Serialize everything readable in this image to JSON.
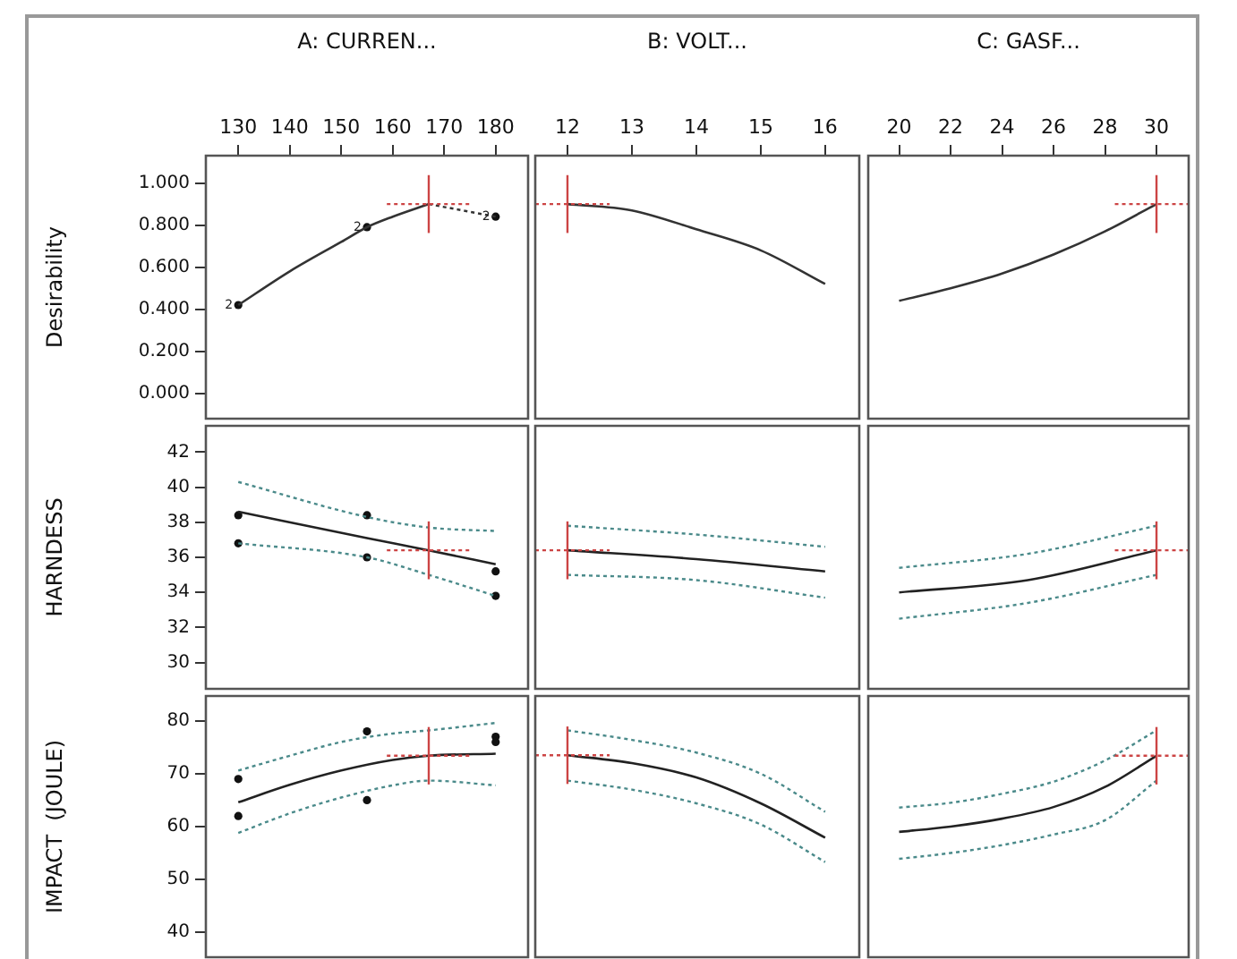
{
  "chart_data": [
    {
      "type": "line",
      "title": "A: CURREN...",
      "ylabel": "Desirability",
      "xlim": [
        123.7,
        186.3
      ],
      "xticks": [
        130,
        140,
        150,
        160,
        170,
        180
      ],
      "ylim": [
        -0.12,
        1.13
      ],
      "yticks": [
        {
          "value": 0,
          "label": "0.000"
        },
        {
          "value": 0.2,
          "label": "0.200"
        },
        {
          "value": 0.4,
          "label": "0.400"
        },
        {
          "value": 0.6,
          "label": "0.600"
        },
        {
          "value": 0.8,
          "label": "0.800"
        },
        {
          "value": 1,
          "label": "1.000"
        }
      ],
      "series": [
        {
          "type": "line",
          "color": "#333333",
          "x": [
            130,
            140,
            150,
            155,
            160,
            167
          ],
          "values": [
            0.42,
            0.58,
            0.72,
            0.79,
            0.84,
            0.9
          ]
        },
        {
          "type": "line",
          "color": "#333333",
          "line_style": "dotted",
          "x": [
            167,
            180
          ],
          "values": [
            0.9,
            0.84
          ]
        },
        {
          "type": "scatter",
          "color": "#111111",
          "marker": "circle",
          "x": [
            130,
            155,
            180
          ],
          "values": [
            0.42,
            0.79,
            0.84
          ]
        }
      ],
      "ref_lines": [
        {
          "axis": "x",
          "value": 167,
          "color": "#cc4444"
        },
        {
          "axis": "y",
          "value": 0.9,
          "color": "#cc4444",
          "line_style": "dotted"
        }
      ],
      "annotations": [
        {
          "text": "2",
          "x": 130,
          "y": 0.42
        },
        {
          "text": "2",
          "x": 155,
          "y": 0.79
        },
        {
          "text": "2",
          "x": 180,
          "y": 0.84
        }
      ]
    },
    {
      "type": "line",
      "title": "B: VOLT...",
      "tick_labels": "x",
      "xlim": [
        11.5,
        16.53
      ],
      "xticks": [
        12,
        13,
        14,
        15,
        16
      ],
      "ylim": [
        -0.12,
        1.13
      ],
      "series": [
        {
          "type": "line",
          "color": "#333333",
          "x": [
            12,
            13,
            14,
            15,
            16
          ],
          "values": [
            0.9,
            0.87,
            0.78,
            0.68,
            0.52
          ]
        }
      ],
      "ref_lines": [
        {
          "axis": "x",
          "value": 12,
          "color": "#cc4444"
        },
        {
          "axis": "y",
          "value": 0.9,
          "color": "#cc4444",
          "line_style": "dotted"
        }
      ]
    },
    {
      "type": "line",
      "title": "C: GASF...",
      "tick_labels": "x",
      "xlim": [
        18.8,
        31.25
      ],
      "xticks": [
        20,
        22,
        24,
        26,
        28,
        30
      ],
      "ylim": [
        -0.12,
        1.13
      ],
      "series": [
        {
          "type": "line",
          "color": "#333333",
          "x": [
            20,
            22,
            24,
            26,
            28,
            30
          ],
          "values": [
            0.44,
            0.5,
            0.57,
            0.66,
            0.77,
            0.9
          ]
        }
      ],
      "ref_lines": [
        {
          "axis": "x",
          "value": 30,
          "color": "#cc4444"
        },
        {
          "axis": "y",
          "value": 0.9,
          "color": "#cc4444",
          "line_style": "dotted"
        }
      ]
    },
    {
      "type": "line",
      "ylabel": "HARNDESS",
      "tick_labels": "y",
      "xlim": [
        123.7,
        186.3
      ],
      "ylim": [
        28.5,
        43.5
      ],
      "yticks": [
        30,
        32,
        34,
        36,
        38,
        40,
        42
      ],
      "series": [
        {
          "type": "line",
          "color": "#222222",
          "x": [
            130,
            155,
            167,
            180
          ],
          "values": [
            38.6,
            37.1,
            36.4,
            35.6
          ]
        },
        {
          "type": "line",
          "color": "#4a8a8a",
          "line_style": "dotted",
          "x": [
            130,
            155,
            167,
            180
          ],
          "values": [
            36.8,
            36.0,
            35.0,
            33.8
          ]
        },
        {
          "type": "line",
          "color": "#4a8a8a",
          "line_style": "dotted",
          "x": [
            130,
            155,
            167,
            180
          ],
          "values": [
            40.3,
            38.3,
            37.7,
            37.5
          ]
        },
        {
          "type": "scatter",
          "color": "#111111",
          "marker": "circle",
          "x": [
            130,
            130,
            155,
            155,
            180,
            180
          ],
          "values": [
            38.4,
            36.8,
            38.4,
            36.0,
            35.2,
            33.8
          ]
        }
      ],
      "ref_lines": [
        {
          "axis": "x",
          "value": 167,
          "color": "#cc4444"
        },
        {
          "axis": "y",
          "value": 36.4,
          "color": "#cc4444",
          "line_style": "dotted"
        }
      ]
    },
    {
      "type": "line",
      "tick_labels": false,
      "xlim": [
        11.5,
        16.53
      ],
      "ylim": [
        28.5,
        43.5
      ],
      "series": [
        {
          "type": "line",
          "color": "#222222",
          "x": [
            12,
            14,
            16
          ],
          "values": [
            36.4,
            35.9,
            35.2
          ]
        },
        {
          "type": "line",
          "color": "#4a8a8a",
          "line_style": "dotted",
          "x": [
            12,
            14,
            16
          ],
          "values": [
            35.0,
            34.7,
            33.7
          ]
        },
        {
          "type": "line",
          "color": "#4a8a8a",
          "line_style": "dotted",
          "x": [
            12,
            14,
            16
          ],
          "values": [
            37.8,
            37.3,
            36.6
          ]
        }
      ],
      "ref_lines": [
        {
          "axis": "x",
          "value": 12,
          "color": "#cc4444"
        },
        {
          "axis": "y",
          "value": 36.4,
          "color": "#cc4444",
          "line_style": "dotted"
        }
      ]
    },
    {
      "type": "line",
      "tick_labels": false,
      "xlim": [
        18.8,
        31.25
      ],
      "ylim": [
        28.5,
        43.5
      ],
      "series": [
        {
          "type": "line",
          "color": "#222222",
          "x": [
            20,
            25,
            30
          ],
          "values": [
            34.0,
            34.7,
            36.4
          ]
        },
        {
          "type": "line",
          "color": "#4a8a8a",
          "line_style": "dotted",
          "x": [
            20,
            25,
            30
          ],
          "values": [
            32.5,
            33.4,
            35.0
          ]
        },
        {
          "type": "line",
          "color": "#4a8a8a",
          "line_style": "dotted",
          "x": [
            20,
            25,
            30
          ],
          "values": [
            35.4,
            36.2,
            37.8
          ]
        }
      ],
      "ref_lines": [
        {
          "axis": "x",
          "value": 30,
          "color": "#cc4444"
        },
        {
          "axis": "y",
          "value": 36.4,
          "color": "#cc4444",
          "line_style": "dotted"
        }
      ]
    },
    {
      "type": "line",
      "ylabel": "IMPACT  (JOULE)",
      "tick_labels": "y",
      "xlim": [
        123.7,
        186.3
      ],
      "ylim": [
        35.3,
        84.7
      ],
      "yticks": [
        40,
        50,
        60,
        70,
        80
      ],
      "series": [
        {
          "type": "line",
          "color": "#222222",
          "x": [
            130,
            140,
            150,
            160,
            167,
            180
          ],
          "values": [
            64.6,
            67.9,
            70.6,
            72.6,
            73.4,
            73.8
          ]
        },
        {
          "type": "line",
          "color": "#4a8a8a",
          "line_style": "dotted",
          "x": [
            130,
            140,
            150,
            160,
            167,
            180
          ],
          "values": [
            58.8,
            62.5,
            65.5,
            67.8,
            68.7,
            67.8
          ]
        },
        {
          "type": "line",
          "color": "#4a8a8a",
          "line_style": "dotted",
          "x": [
            130,
            140,
            150,
            160,
            167,
            180
          ],
          "values": [
            70.6,
            73.4,
            76.0,
            77.6,
            78.2,
            79.6
          ]
        },
        {
          "type": "scatter",
          "color": "#111111",
          "marker": "circle",
          "x": [
            130,
            130,
            155,
            155,
            180,
            180
          ],
          "values": [
            69,
            62,
            78,
            65,
            77,
            76
          ]
        }
      ],
      "ref_lines": [
        {
          "axis": "x",
          "value": 167,
          "color": "#cc4444"
        },
        {
          "axis": "y",
          "value": 73.4,
          "color": "#cc4444",
          "line_style": "dotted"
        }
      ]
    },
    {
      "type": "line",
      "tick_labels": false,
      "xlim": [
        11.5,
        16.53
      ],
      "ylim": [
        35.3,
        84.7
      ],
      "series": [
        {
          "type": "line",
          "color": "#222222",
          "x": [
            12,
            13,
            14,
            15,
            16
          ],
          "values": [
            73.5,
            72.0,
            69.3,
            64.4,
            57.9
          ]
        },
        {
          "type": "line",
          "color": "#4a8a8a",
          "line_style": "dotted",
          "x": [
            12,
            13,
            14,
            15,
            16
          ],
          "values": [
            68.7,
            67.0,
            64.4,
            60.4,
            53.3
          ]
        },
        {
          "type": "line",
          "color": "#4a8a8a",
          "line_style": "dotted",
          "x": [
            12,
            13,
            14,
            15,
            16
          ],
          "values": [
            78.2,
            76.4,
            74.0,
            70.0,
            62.8
          ]
        }
      ],
      "ref_lines": [
        {
          "axis": "x",
          "value": 12,
          "color": "#cc4444"
        },
        {
          "axis": "y",
          "value": 73.5,
          "color": "#cc4444",
          "line_style": "dotted"
        }
      ]
    },
    {
      "type": "line",
      "tick_labels": false,
      "xlim": [
        18.8,
        31.25
      ],
      "ylim": [
        35.3,
        84.7
      ],
      "series": [
        {
          "type": "line",
          "color": "#222222",
          "x": [
            20,
            22,
            24,
            26,
            28,
            30
          ],
          "values": [
            59.0,
            60.0,
            61.5,
            63.7,
            67.5,
            73.4
          ]
        },
        {
          "type": "line",
          "color": "#4a8a8a",
          "line_style": "dotted",
          "x": [
            20,
            22,
            24,
            26,
            28,
            30
          ],
          "values": [
            53.9,
            55.0,
            56.5,
            58.5,
            61.2,
            68.7
          ]
        },
        {
          "type": "line",
          "color": "#4a8a8a",
          "line_style": "dotted",
          "x": [
            20,
            22,
            24,
            26,
            28,
            30
          ],
          "values": [
            63.6,
            64.5,
            66.2,
            68.5,
            72.5,
            78.2
          ]
        }
      ],
      "ref_lines": [
        {
          "axis": "x",
          "value": 30,
          "color": "#cc4444"
        },
        {
          "axis": "y",
          "value": 73.4,
          "color": "#cc4444",
          "line_style": "dotted"
        }
      ]
    }
  ]
}
